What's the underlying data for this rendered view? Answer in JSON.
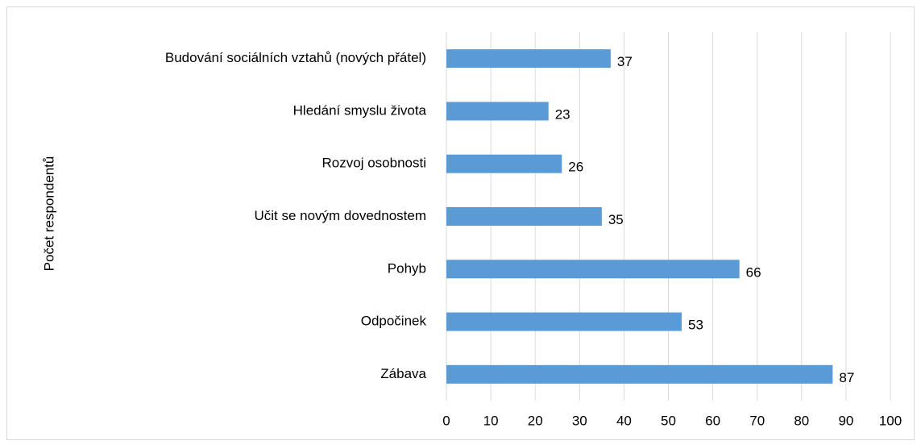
{
  "chart_data": {
    "type": "bar",
    "orientation": "horizontal",
    "y_label": "Počet respondentů",
    "categories": [
      "Budování sociálních vztahů (nových přátel)",
      "Hledání smyslu života",
      "Rozvoj osobnosti",
      "Učit se novým dovednostem",
      "Pohyb",
      "Odpočinek",
      "Zábava"
    ],
    "values": [
      37,
      23,
      26,
      35,
      66,
      53,
      87
    ],
    "color": "#5b9bd5",
    "xlim": [
      0,
      100
    ],
    "xticks": [
      0,
      10,
      20,
      30,
      40,
      50,
      60,
      70,
      80,
      90,
      100
    ],
    "grid": true
  }
}
